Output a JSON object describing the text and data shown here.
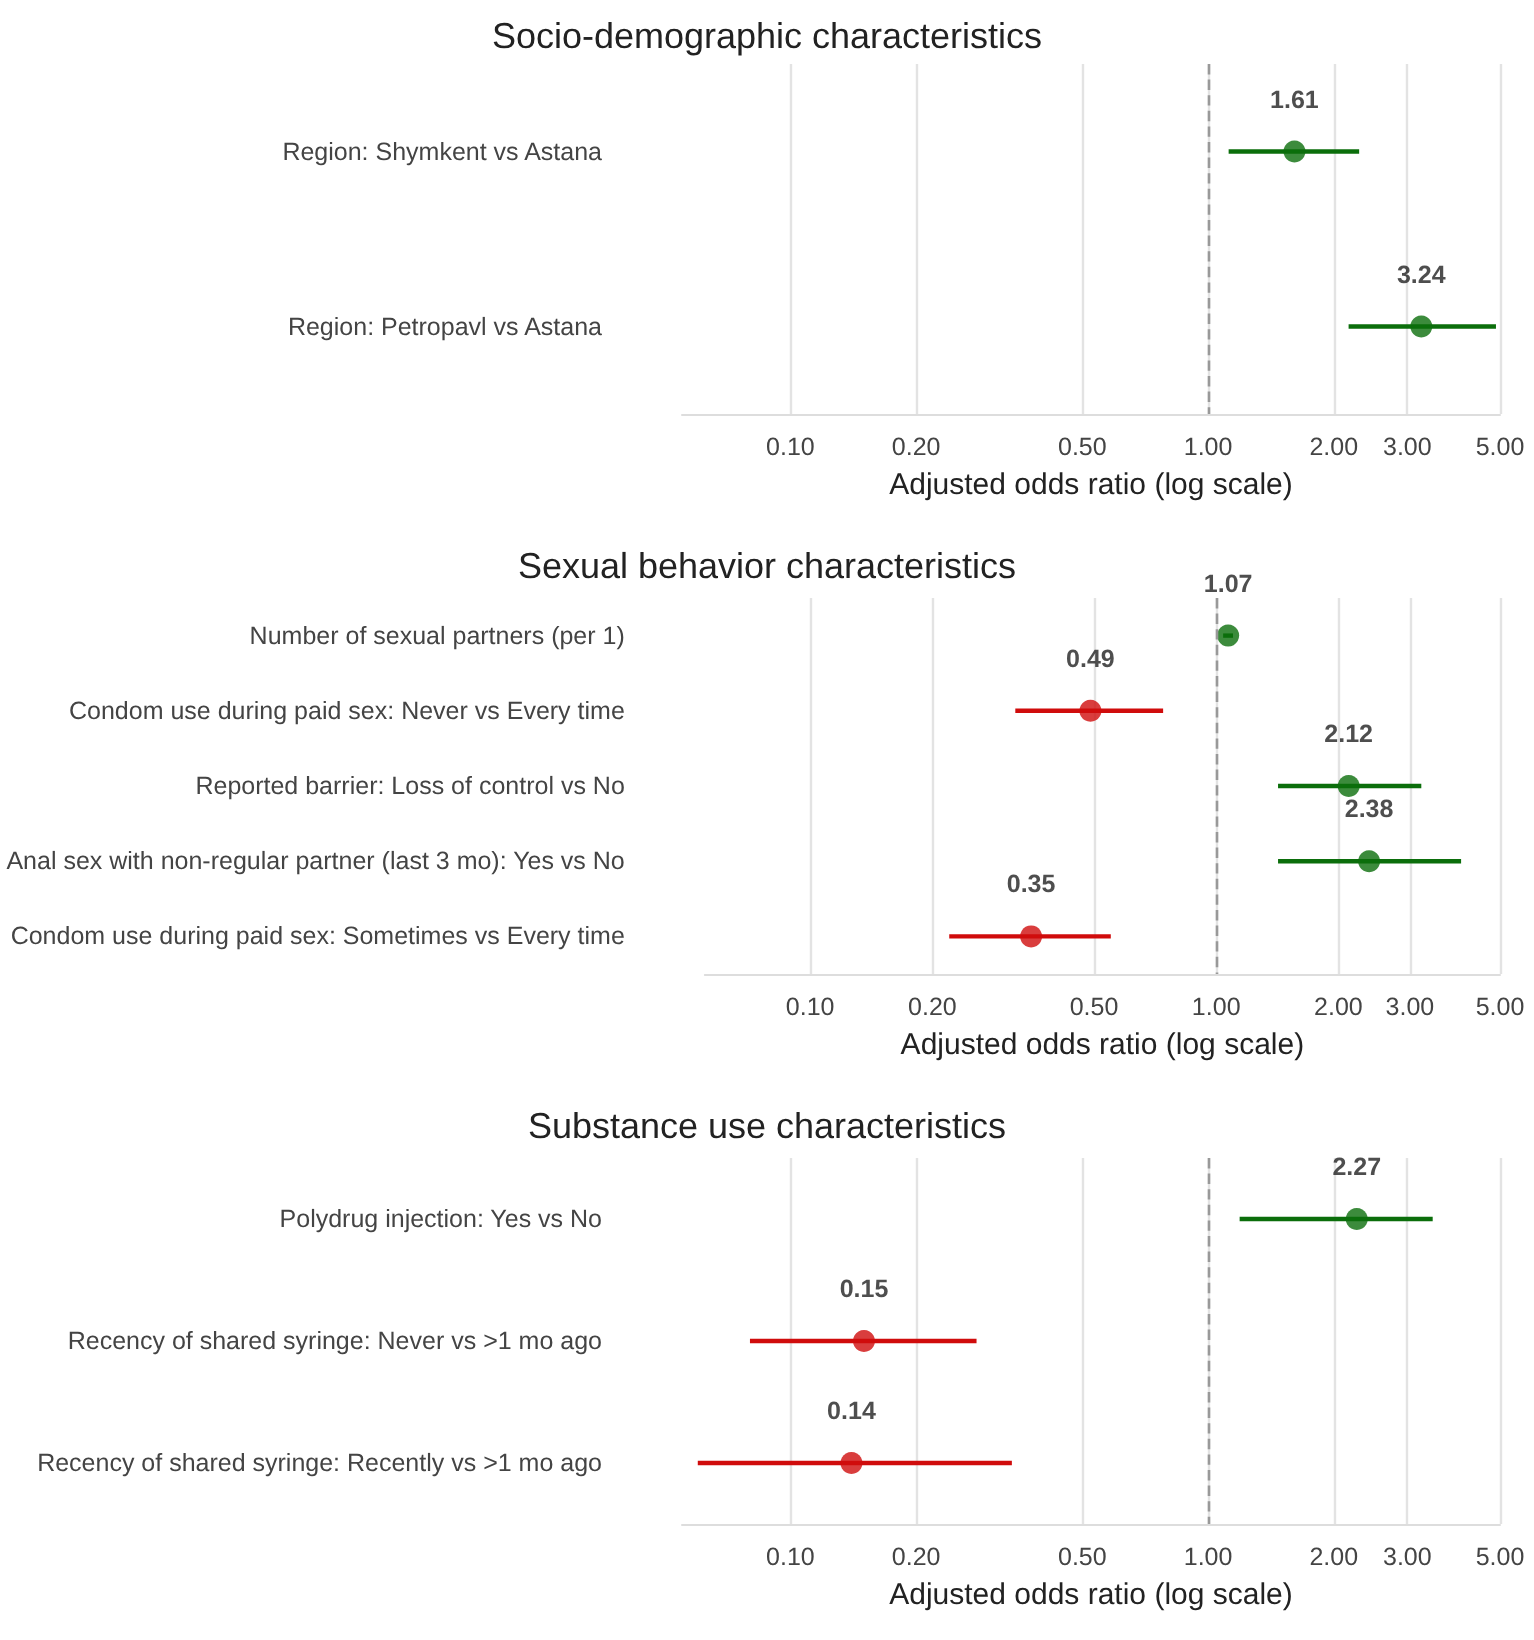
{
  "chart_data": [
    {
      "type": "scatter",
      "orientation": "horizontal",
      "title": "Socio-demographic characteristics",
      "xlabel": "Adjusted odds ratio (log scale)",
      "categories": [
        "Region: Shymkent vs Astana",
        "Region: Petropavl vs Astana"
      ],
      "values": [
        1.61,
        3.24
      ],
      "colors": [
        "#0b6e0b",
        "#0b6e0b"
      ],
      "errors": [
        [
          1.12,
          2.3
        ],
        [
          2.17,
          4.89
        ]
      ],
      "xlim": [
        0.055,
        5
      ],
      "xticks": [
        {
          "value": 0.1,
          "label": "0.10"
        },
        {
          "value": 0.2,
          "label": "0.20"
        },
        {
          "value": 0.5,
          "label": "0.50"
        },
        {
          "value": 1,
          "label": "1.00"
        },
        {
          "value": 2,
          "label": "2.00"
        },
        {
          "value": 3,
          "label": "3.00"
        },
        {
          "value": 5,
          "label": "5.00"
        }
      ],
      "log": "x",
      "grid": "x",
      "marker": "circle",
      "data_labels": true,
      "ref_lines": [
        {
          "axis": "x",
          "value": 1,
          "color": "#999999",
          "line_style": "dashed"
        }
      ]
    },
    {
      "type": "scatter",
      "orientation": "horizontal",
      "title": "Sexual behavior characteristics",
      "xlabel": "Adjusted odds ratio (log scale)",
      "categories": [
        "Number of sexual partners (per 1)",
        "Condom use during paid sex: Never vs Every time",
        "Reported barrier: Loss of control vs No",
        "Anal sex with non-regular partner (last 3 mo): Yes vs No",
        "Condom use during paid sex: Sometimes vs Every time"
      ],
      "values": [
        1.07,
        0.49,
        2.12,
        2.38,
        0.35
      ],
      "colors": [
        "#0b6e0b",
        "#d00c0c",
        "#0b6e0b",
        "#0b6e0b",
        "#d00c0c"
      ],
      "errors": [
        [
          1.04,
          1.1
        ],
        [
          0.32,
          0.74
        ],
        [
          1.42,
          3.2
        ],
        [
          1.42,
          4.01
        ],
        [
          0.22,
          0.55
        ]
      ],
      "xlim": [
        0.055,
        5
      ],
      "xticks": [
        {
          "value": 0.1,
          "label": "0.10"
        },
        {
          "value": 0.2,
          "label": "0.20"
        },
        {
          "value": 0.5,
          "label": "0.50"
        },
        {
          "value": 1,
          "label": "1.00"
        },
        {
          "value": 2,
          "label": "2.00"
        },
        {
          "value": 3,
          "label": "3.00"
        },
        {
          "value": 5,
          "label": "5.00"
        }
      ],
      "log": "x",
      "grid": "x",
      "marker": "circle",
      "data_labels": true,
      "ref_lines": [
        {
          "axis": "x",
          "value": 1,
          "color": "#999999",
          "line_style": "dashed"
        }
      ]
    },
    {
      "type": "scatter",
      "orientation": "horizontal",
      "title": "Substance use characteristics",
      "xlabel": "Adjusted odds ratio (log scale)",
      "categories": [
        "Polydrug injection: Yes vs No",
        "Recency of shared syringe: Never vs >1 mo ago",
        "Recency of shared syringe: Recently vs >1 mo ago"
      ],
      "values": [
        2.27,
        0.15,
        0.14
      ],
      "colors": [
        "#0b6e0b",
        "#d00c0c",
        "#d00c0c"
      ],
      "errors": [
        [
          1.19,
          3.45
        ],
        [
          0.08,
          0.279
        ],
        [
          0.06,
          0.339
        ]
      ],
      "xlim": [
        0.055,
        5
      ],
      "xticks": [
        {
          "value": 0.1,
          "label": "0.10"
        },
        {
          "value": 0.2,
          "label": "0.20"
        },
        {
          "value": 0.5,
          "label": "0.50"
        },
        {
          "value": 1,
          "label": "1.00"
        },
        {
          "value": 2,
          "label": "2.00"
        },
        {
          "value": 3,
          "label": "3.00"
        },
        {
          "value": 5,
          "label": "5.00"
        }
      ],
      "log": "x",
      "grid": "x",
      "marker": "circle",
      "data_labels": true,
      "ref_lines": [
        {
          "axis": "x",
          "value": 1,
          "color": "#999999",
          "line_style": "dashed"
        }
      ]
    }
  ]
}
